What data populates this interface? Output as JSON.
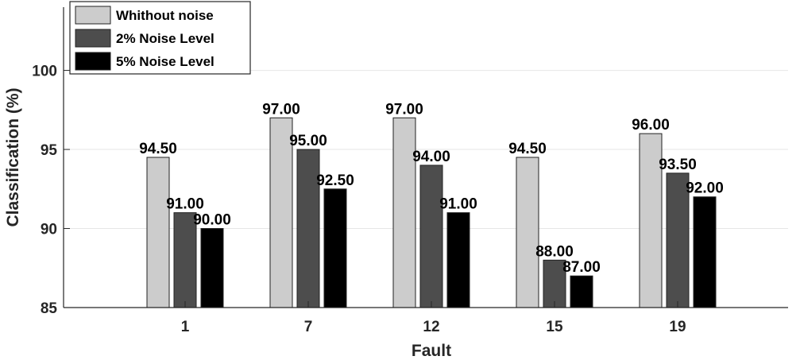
{
  "chart_data": {
    "type": "bar",
    "categories": [
      "1",
      "7",
      "12",
      "15",
      "19"
    ],
    "series": [
      {
        "name": "Whithout noise",
        "color": "#cccccc",
        "values": [
          94.5,
          97,
          97,
          94.5,
          96
        ],
        "labels": [
          "94.50",
          "97.00",
          "97.00",
          "94.50",
          "96.00"
        ]
      },
      {
        "name": "2% Noise Level",
        "color": "#4d4d4d",
        "values": [
          91,
          95,
          94,
          88,
          93.5
        ],
        "labels": [
          "91.00",
          "95.00",
          "94.00",
          "88.00",
          "93.50"
        ]
      },
      {
        "name": "5% Noise Level",
        "color": "#000000",
        "values": [
          90,
          92.5,
          91,
          87,
          92
        ],
        "labels": [
          "90.00",
          "92.50",
          "91.00",
          "87.00",
          "92.00"
        ]
      }
    ],
    "xlabel": "Fault",
    "ylabel": "Classification (%)",
    "ylim": [
      85,
      104
    ],
    "yticks": [
      85,
      90,
      95,
      100
    ],
    "grid": true,
    "legend_position": "top-left"
  }
}
